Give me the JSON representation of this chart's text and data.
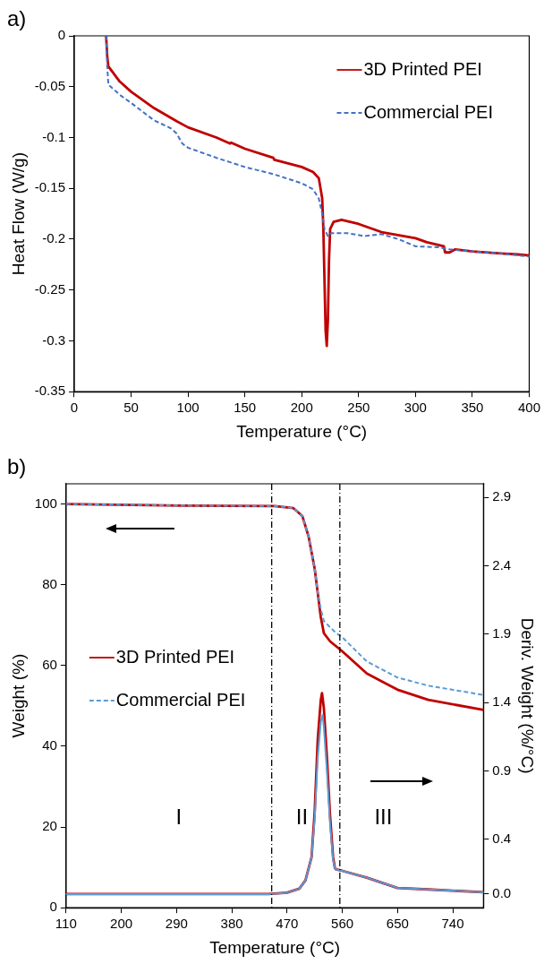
{
  "chart_data": [
    {
      "type": "line",
      "title": "a)",
      "xlabel": "Temperature (°C)",
      "ylabel": "Heat Flow (W/g)",
      "xlim": [
        0,
        400
      ],
      "xticks": [
        0,
        50,
        100,
        150,
        200,
        250,
        300,
        350,
        400
      ],
      "ylim": [
        -0.35,
        0
      ],
      "yticks": [
        -0.35,
        -0.3,
        -0.25,
        -0.2,
        -0.15,
        -0.1,
        -0.05,
        0
      ],
      "legend": "top right",
      "series": [
        {
          "name": "3D Printed PEI",
          "color": "#c00000",
          "line_style": "solid",
          "x": [
            28,
            29,
            30,
            40,
            50,
            70,
            90,
            100,
            125,
            137,
            138,
            150,
            175,
            176,
            200,
            210,
            215,
            218,
            219,
            220,
            221,
            222,
            223,
            224,
            225,
            228,
            235,
            250,
            270,
            290,
            300,
            310,
            325,
            326,
            330,
            335,
            350,
            375,
            390,
            400
          ],
          "values": [
            0,
            -0.02,
            -0.03,
            -0.045,
            -0.055,
            -0.071,
            -0.084,
            -0.09,
            -0.1,
            -0.106,
            -0.105,
            -0.111,
            -0.12,
            -0.122,
            -0.129,
            -0.134,
            -0.14,
            -0.16,
            -0.19,
            -0.24,
            -0.29,
            -0.305,
            -0.28,
            -0.22,
            -0.19,
            -0.183,
            -0.181,
            -0.185,
            -0.193,
            -0.197,
            -0.199,
            -0.203,
            -0.207,
            -0.213,
            -0.213,
            -0.21,
            -0.212,
            -0.214,
            -0.215,
            -0.216
          ]
        },
        {
          "name": "Commercial PEI",
          "color": "#4472c4",
          "line_style": "dashed",
          "x": [
            28,
            29,
            30,
            40,
            50,
            70,
            85,
            90,
            95,
            100,
            125,
            150,
            175,
            200,
            210,
            215,
            218,
            220,
            223,
            226,
            240,
            255,
            270,
            285,
            300,
            320,
            330,
            350,
            375,
            400
          ],
          "values": [
            0,
            -0.03,
            -0.048,
            -0.058,
            -0.066,
            -0.083,
            -0.091,
            -0.096,
            -0.106,
            -0.11,
            -0.12,
            -0.129,
            -0.136,
            -0.145,
            -0.151,
            -0.16,
            -0.175,
            -0.19,
            -0.197,
            -0.194,
            -0.194,
            -0.197,
            -0.195,
            -0.2,
            -0.207,
            -0.208,
            -0.21,
            -0.212,
            -0.214,
            -0.217
          ]
        }
      ]
    },
    {
      "type": "line",
      "title": "b)",
      "xlabel": "Temperature (°C)",
      "ylabel": "Weight (%)",
      "y2label": "Deriv. Weight (%/°C)",
      "xlim": [
        110,
        790
      ],
      "xticks": [
        110,
        200,
        290,
        380,
        470,
        560,
        650,
        740
      ],
      "ylim": [
        0,
        105
      ],
      "yticks": [
        0,
        20,
        40,
        60,
        80,
        100
      ],
      "y2lim": [
        -0.1,
        3.0
      ],
      "y2ticks": [
        {
          "value": 0,
          "label": "0.0"
        },
        0.4,
        0.9,
        1.4,
        1.9,
        2.4,
        2.9
      ],
      "legend": "left",
      "series": [
        {
          "name": "3D Printed PEI",
          "color": "#c00000",
          "line_style": "solid",
          "x": [
            110,
            300,
            450,
            480,
            495,
            505,
            515,
            520,
            525,
            530,
            540,
            560,
            600,
            650,
            700,
            790
          ],
          "values": [
            100,
            99.6,
            99.5,
            99,
            97,
            92,
            84,
            78,
            72,
            68,
            66,
            63.5,
            58,
            54,
            51.5,
            49
          ]
        },
        {
          "name": "Commercial PEI",
          "color": "#5b9bd5",
          "line_style": "dashed",
          "x": [
            110,
            300,
            450,
            480,
            495,
            505,
            515,
            520,
            525,
            530,
            550,
            560,
            600,
            650,
            700,
            790
          ],
          "values": [
            100,
            99.6,
            99.5,
            99,
            97,
            92,
            84,
            78,
            74,
            71,
            68,
            67,
            61,
            57,
            55,
            52.7
          ]
        },
        {
          "type": "line",
          "axis": "y2",
          "color": "#c00000",
          "line_style": "solid",
          "x": [
            110,
            440,
            470,
            490,
            500,
            510,
            515,
            520,
            525,
            527,
            530,
            535,
            540,
            545,
            548,
            550,
            560,
            600,
            650,
            700,
            790
          ],
          "values": [
            0,
            0,
            0.01,
            0.04,
            0.1,
            0.27,
            0.6,
            1.13,
            1.42,
            1.47,
            1.36,
            1,
            0.58,
            0.27,
            0.19,
            0.18,
            0.17,
            0.12,
            0.045,
            0.034,
            0.013
          ]
        },
        {
          "type": "line",
          "axis": "y2",
          "color": "#5b9bd5",
          "line_style": "solid",
          "x": [
            110,
            440,
            470,
            490,
            500,
            510,
            515,
            520,
            525,
            528,
            530,
            535,
            540,
            545,
            548,
            550,
            560,
            600,
            650,
            700,
            790
          ],
          "values": [
            0,
            0,
            0.01,
            0.04,
            0.1,
            0.27,
            0.55,
            1.0,
            1.26,
            1.31,
            1.22,
            0.9,
            0.52,
            0.25,
            0.19,
            0.18,
            0.17,
            0.12,
            0.045,
            0.034,
            0.013
          ]
        }
      ],
      "ref_lines": [
        {
          "axis": "x",
          "value": 445,
          "color": "#000000",
          "line_style": "dashed"
        },
        {
          "axis": "x",
          "value": 556,
          "color": "#000000",
          "line_style": "dashed"
        }
      ],
      "annotations": [
        "I",
        "II",
        "III"
      ]
    }
  ]
}
